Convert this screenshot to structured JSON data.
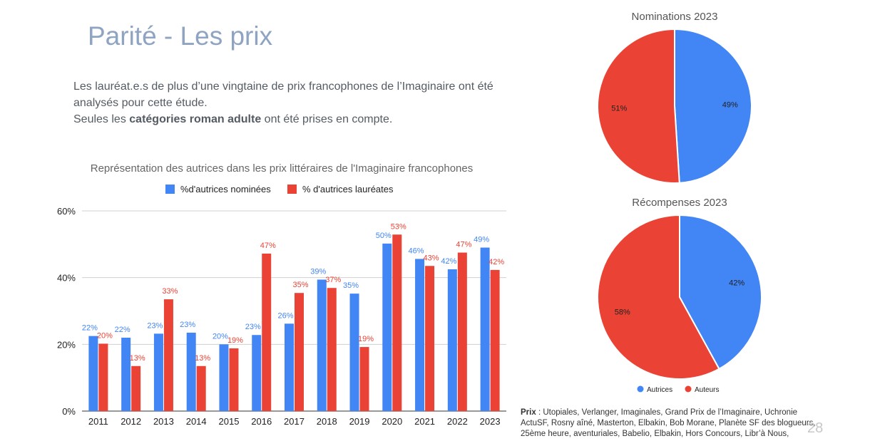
{
  "slide": {
    "title": "Parité - Les prix",
    "intro_line1": "Les lauréat.e.s de plus d’une vingtaine de prix francophones de l’Imaginaire ont été analysés pour cette étude.",
    "intro_line2_before": "Seules les ",
    "intro_line2_bold": "catégories roman adulte",
    "intro_line2_after": " ont été prises en compte.",
    "footer_label": "Prix",
    "footer_text": " : Utopiales, Verlanger, Imaginales, Grand Prix de l’Imaginaire, Uchronie ActuSF, Rosny aîné, Masterton, Elbakin, Bob Morane, Planète SF des blogueurs, 25ème heure, aventuriales, Babelio, Elbakin, Hors Concours,  Libr’à Nous,",
    "page_number": "28"
  },
  "colors": {
    "blue": "#4285f4",
    "red": "#ea4335"
  },
  "chart_data": [
    {
      "type": "bar",
      "title": "Représentation des autrices dans les prix littéraires de l'Imaginaire francophones",
      "categories": [
        "2011",
        "2012",
        "2013",
        "2014",
        "2015",
        "2016",
        "2017",
        "2018",
        "2019",
        "2020",
        "2021",
        "2022",
        "2023"
      ],
      "series": [
        {
          "name": "%d'autrices nominées",
          "color": "#4285f4",
          "values": [
            22.5,
            22,
            23.2,
            23.5,
            20,
            22.8,
            26.2,
            39.4,
            35.2,
            50.2,
            45.6,
            42.5,
            49
          ],
          "labels": [
            "22%",
            "22%",
            "23%",
            "23%",
            "20%",
            "23%",
            "26%",
            "39%",
            "35%",
            "50%",
            "46%",
            "42%",
            "49%"
          ]
        },
        {
          "name": "% d'autrices lauréates",
          "color": "#ea4335",
          "values": [
            20.2,
            13.5,
            33.5,
            13.5,
            18.8,
            47.2,
            35.4,
            36.9,
            19.2,
            52.9,
            43.5,
            47.5,
            42.3
          ],
          "labels": [
            "20%",
            "13%",
            "33%",
            "13%",
            "19%",
            "47%",
            "35%",
            "37%",
            "19%",
            "53%",
            "43%",
            "47%",
            "42%"
          ]
        }
      ],
      "ylim": [
        0,
        60
      ],
      "yticks": [
        "0%",
        "20%",
        "40%",
        "60%"
      ],
      "grid": true,
      "legend": "top"
    },
    {
      "type": "pie",
      "title": "Nominations 2023",
      "slices": [
        {
          "label": "Autrices",
          "value": 49,
          "text": "49%",
          "color": "#4285f4"
        },
        {
          "label": "Auteurs",
          "value": 51,
          "text": "51%",
          "color": "#ea4335"
        }
      ]
    },
    {
      "type": "pie",
      "title": "Récompenses 2023",
      "slices": [
        {
          "label": "Autrices",
          "value": 42,
          "text": "42%",
          "color": "#4285f4"
        },
        {
          "label": "Auteurs",
          "value": 58,
          "text": "58%",
          "color": "#ea4335"
        }
      ],
      "legend": [
        "Autrices",
        "Auteurs"
      ]
    }
  ]
}
